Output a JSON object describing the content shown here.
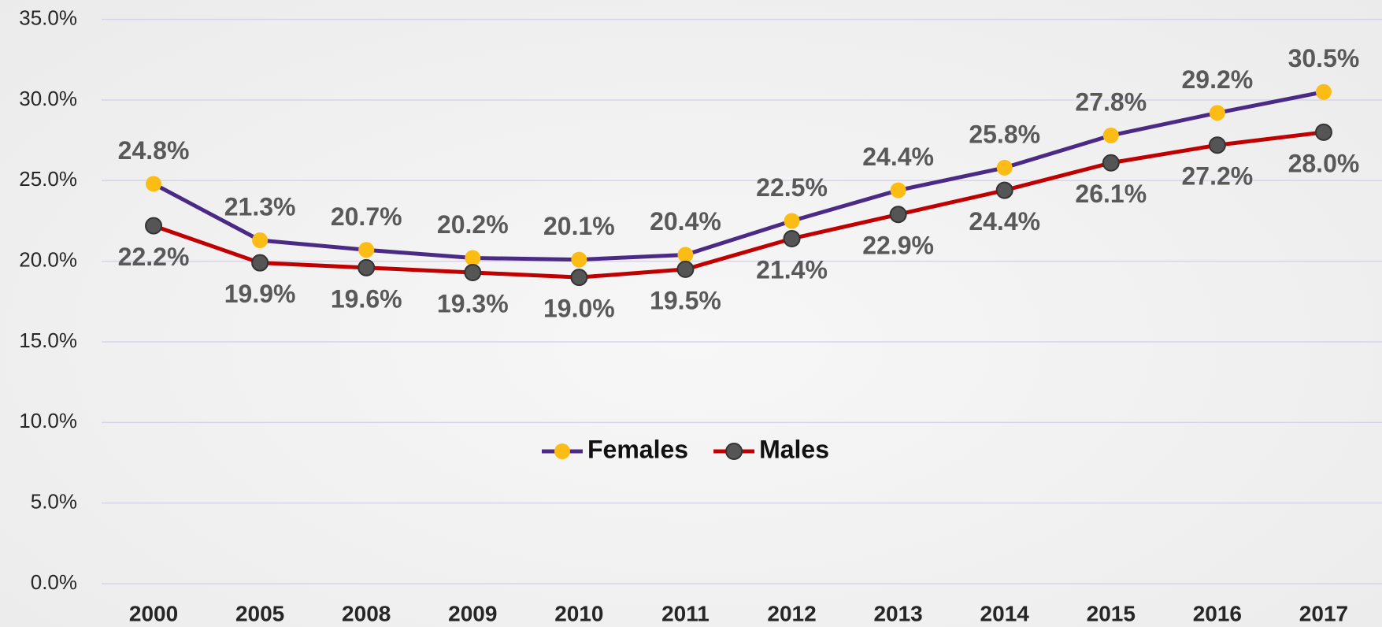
{
  "chart_data": {
    "type": "line",
    "categories": [
      "2000",
      "2005",
      "2008",
      "2009",
      "2010",
      "2011",
      "2012",
      "2013",
      "2014",
      "2015",
      "2016",
      "2017"
    ],
    "series": [
      {
        "name": "Females",
        "color": "#4b2a86",
        "marker_color": "#fbbc16",
        "values": [
          24.8,
          21.3,
          20.7,
          20.2,
          20.1,
          20.4,
          22.5,
          24.4,
          25.8,
          27.8,
          29.2,
          30.5
        ],
        "value_labels": [
          "24.8%",
          "21.3%",
          "20.7%",
          "20.2%",
          "20.1%",
          "20.4%",
          "22.5%",
          "24.4%",
          "25.8%",
          "27.8%",
          "29.2%",
          "30.5%"
        ]
      },
      {
        "name": "Males",
        "color": "#c00000",
        "marker_color": "#555555",
        "values": [
          22.2,
          19.9,
          19.6,
          19.3,
          19.0,
          19.5,
          21.4,
          22.9,
          24.4,
          26.1,
          27.2,
          28.0
        ],
        "value_labels": [
          "22.2%",
          "19.9%",
          "19.6%",
          "19.3%",
          "19.0%",
          "19.5%",
          "21.4%",
          "22.9%",
          "24.4%",
          "26.1%",
          "27.2%",
          "28.0%"
        ]
      }
    ],
    "ylim": [
      0,
      35
    ],
    "yticks": [
      {
        "value": 0,
        "label": "0.0%"
      },
      {
        "value": 5,
        "label": "5.0%"
      },
      {
        "value": 10,
        "label": "10.0%"
      },
      {
        "value": 15,
        "label": "15.0%"
      },
      {
        "value": 20,
        "label": "20.0%"
      },
      {
        "value": 25,
        "label": "25.0%"
      },
      {
        "value": 30,
        "label": "30.0%"
      },
      {
        "value": 35,
        "label": "35.0%"
      }
    ],
    "grid": true,
    "legend": "center"
  }
}
